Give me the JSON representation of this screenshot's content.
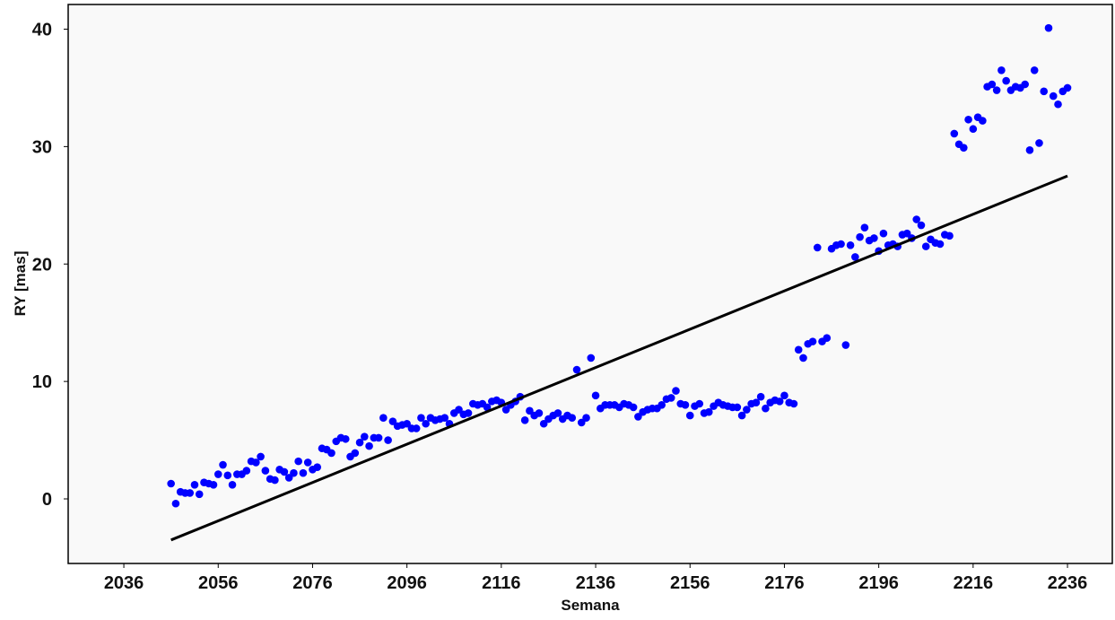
{
  "chart_data": {
    "type": "scatter",
    "xlabel": "Semana",
    "ylabel": "RY [mas]",
    "xlim": [
      2024.2,
      2245.5
    ],
    "ylim": [
      -5.5,
      42.1
    ],
    "xticks": [
      2036,
      2056,
      2076,
      2096,
      2116,
      2136,
      2156,
      2176,
      2196,
      2216,
      2236
    ],
    "yticks": [
      0,
      10,
      20,
      30,
      40
    ],
    "series": [
      {
        "type": "scatter",
        "color": "#0000ff",
        "x": [
          2046,
          2047,
          2048,
          2049,
          2050,
          2051,
          2052,
          2053,
          2054,
          2055,
          2056,
          2057,
          2058,
          2059,
          2060,
          2061,
          2062,
          2063,
          2064,
          2065,
          2066,
          2067,
          2068,
          2069,
          2070,
          2071,
          2072,
          2073,
          2074,
          2075,
          2076,
          2077,
          2078,
          2079,
          2080,
          2081,
          2082,
          2083,
          2084,
          2085,
          2086,
          2087,
          2088,
          2089,
          2090,
          2091,
          2092,
          2093,
          2094,
          2095,
          2096,
          2097,
          2098,
          2099,
          2100,
          2101,
          2102,
          2103,
          2104,
          2105,
          2106,
          2107,
          2108,
          2109,
          2110,
          2111,
          2112,
          2113,
          2114,
          2115,
          2116,
          2117,
          2118,
          2119,
          2120,
          2121,
          2122,
          2123,
          2124,
          2125,
          2126,
          2127,
          2128,
          2129,
          2130,
          2131,
          2132,
          2133,
          2134,
          2135,
          2136,
          2137,
          2138,
          2139,
          2140,
          2141,
          2142,
          2143,
          2144,
          2145,
          2146,
          2147,
          2148,
          2149,
          2150,
          2151,
          2152,
          2153,
          2154,
          2155,
          2156,
          2157,
          2158,
          2159,
          2160,
          2161,
          2162,
          2163,
          2164,
          2165,
          2166,
          2167,
          2168,
          2169,
          2170,
          2171,
          2172,
          2173,
          2174,
          2175,
          2176,
          2177,
          2178,
          2179,
          2180,
          2181,
          2182,
          2183,
          2184,
          2185,
          2186,
          2187,
          2188,
          2189,
          2190,
          2191,
          2192,
          2193,
          2194,
          2195,
          2196,
          2197,
          2198,
          2199,
          2200,
          2201,
          2202,
          2203,
          2204,
          2205,
          2206,
          2207,
          2208,
          2209,
          2210,
          2211,
          2212,
          2213,
          2214,
          2215,
          2216,
          2217,
          2218,
          2219,
          2220,
          2221,
          2222,
          2223,
          2224,
          2225,
          2226,
          2227,
          2228,
          2229,
          2230,
          2231,
          2232,
          2233,
          2234,
          2235,
          2236
        ],
        "values": [
          1.3,
          -0.4,
          0.6,
          0.5,
          0.5,
          1.2,
          0.4,
          1.4,
          1.3,
          1.2,
          2.1,
          2.9,
          2.0,
          1.2,
          2.1,
          2.1,
          2.4,
          3.2,
          3.1,
          3.6,
          2.4,
          1.7,
          1.6,
          2.5,
          2.3,
          1.8,
          2.2,
          3.2,
          2.2,
          3.1,
          2.5,
          2.7,
          4.3,
          4.2,
          3.9,
          4.9,
          5.2,
          5.1,
          3.6,
          3.9,
          4.8,
          5.3,
          4.5,
          5.2,
          5.2,
          6.9,
          5.0,
          6.6,
          6.2,
          6.3,
          6.4,
          6.0,
          6.0,
          6.9,
          6.4,
          6.9,
          6.7,
          6.8,
          6.9,
          6.4,
          7.3,
          7.6,
          7.2,
          7.3,
          8.1,
          8.0,
          8.1,
          7.8,
          8.3,
          8.4,
          8.2,
          7.6,
          8.0,
          8.3,
          8.7,
          6.7,
          7.5,
          7.1,
          7.3,
          6.4,
          6.8,
          7.1,
          7.3,
          6.8,
          7.1,
          6.9,
          11.0,
          6.5,
          6.9,
          12.0,
          8.8,
          7.7,
          8.0,
          8.0,
          8.0,
          7.8,
          8.1,
          8.0,
          7.8,
          7.0,
          7.4,
          7.6,
          7.7,
          7.7,
          8.0,
          8.5,
          8.6,
          9.2,
          8.1,
          8.0,
          7.1,
          7.9,
          8.1,
          7.3,
          7.4,
          7.9,
          8.2,
          8.0,
          7.9,
          7.8,
          7.8,
          7.1,
          7.6,
          8.1,
          8.2,
          8.7,
          7.7,
          8.2,
          8.4,
          8.3,
          8.8,
          8.2,
          8.1,
          12.7,
          12.0,
          13.2,
          13.4,
          21.4,
          13.4,
          13.7,
          21.3,
          21.6,
          21.7,
          13.1,
          21.6,
          20.6,
          22.3,
          23.1,
          22.0,
          22.2,
          21.1,
          22.6,
          21.6,
          21.7,
          21.5,
          22.5,
          22.6,
          22.2,
          23.8,
          23.3,
          21.5,
          22.1,
          21.8,
          21.7,
          22.5,
          22.4,
          31.1,
          30.2,
          29.9,
          32.3,
          31.5,
          32.5,
          32.2,
          35.1,
          35.3,
          34.8,
          36.5,
          35.6,
          34.8,
          35.1,
          35.0,
          35.3,
          29.7,
          36.5,
          30.3,
          34.7,
          40.1,
          34.3,
          33.6,
          34.7,
          35.0
        ]
      },
      {
        "type": "line",
        "color": "#000000",
        "x": [
          2046,
          2236
        ],
        "values": [
          -3.5,
          27.5
        ]
      }
    ]
  }
}
